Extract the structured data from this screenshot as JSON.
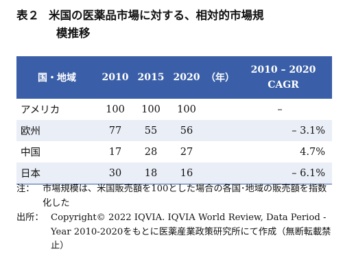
{
  "title": {
    "number": "表２",
    "line1": "米国の医薬品市場に対する、相対的市場規",
    "line2": "模推移"
  },
  "table": {
    "header": {
      "region": "国・地域",
      "years": [
        "2010",
        "2015",
        "2020"
      ],
      "unit": "（年）",
      "cagr_line1": "2010 – 2020",
      "cagr_line2": "CAGR"
    },
    "rows": [
      {
        "region": "アメリカ",
        "v2010": "100",
        "v2015": "100",
        "v2020": "100",
        "cagr": "–"
      },
      {
        "region": "欧州",
        "v2010": "77",
        "v2015": "55",
        "v2020": "56",
        "cagr": "– 3.1%"
      },
      {
        "region": "中国",
        "v2010": "17",
        "v2015": "28",
        "v2020": "27",
        "cagr": "4.7%"
      },
      {
        "region": "日本",
        "v2010": "30",
        "v2015": "18",
        "v2020": "16",
        "cagr": "– 6.1%"
      }
    ]
  },
  "notes": {
    "note_label": "注：",
    "note_text": "市場規模は、米国販売額を100とした場合の各国･地域の販売額を指数化した",
    "source_label": "出所：",
    "source_text": "Copyright© 2022 IQVIA. IQVIA World Review, Data Period - Year 2010-2020をもとに医薬産業政策研究所にて作成（無断転載禁止）"
  },
  "colors": {
    "header_bg": "#3a5fa8",
    "row_shade": "#eaeef7"
  }
}
